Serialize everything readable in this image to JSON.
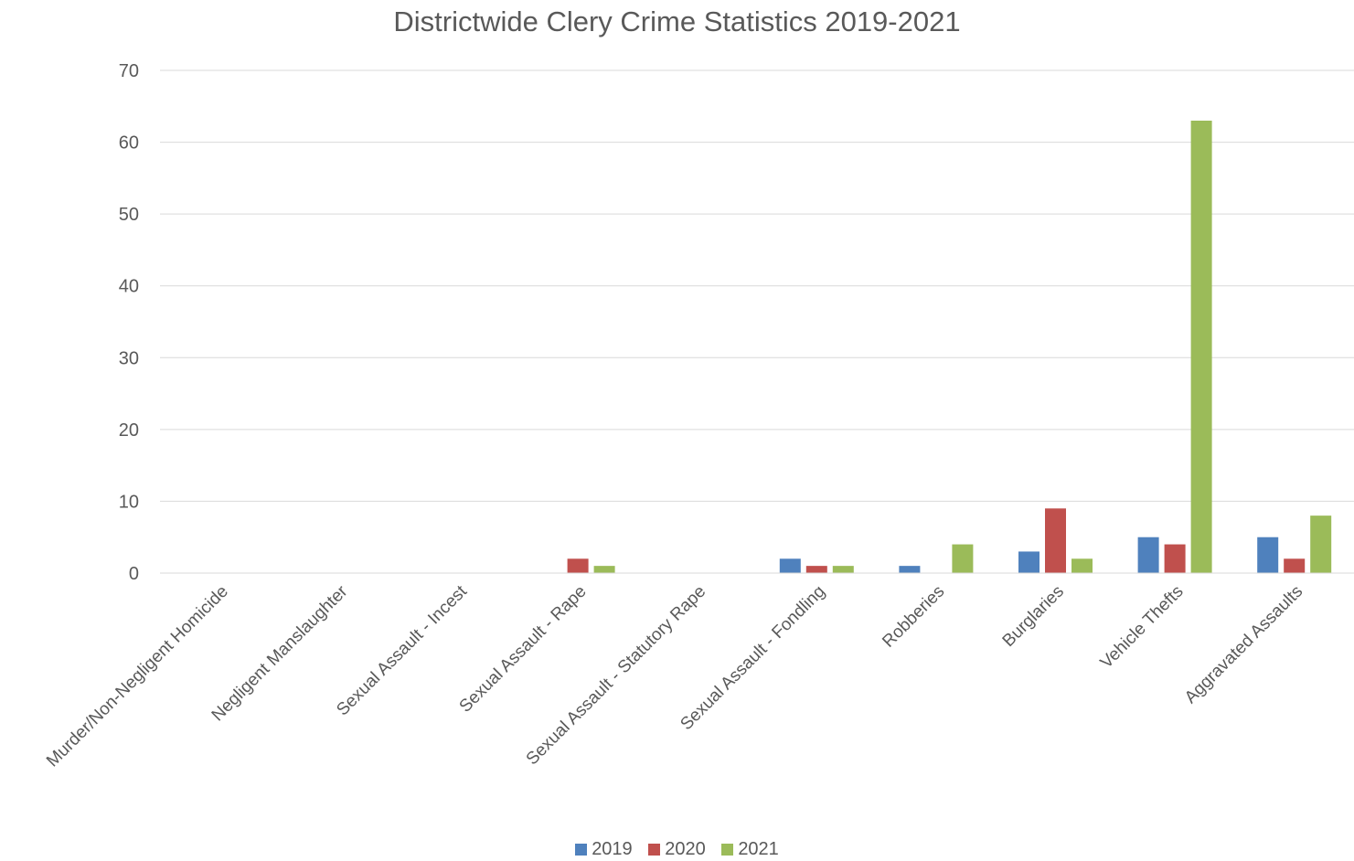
{
  "chart_data": {
    "type": "bar",
    "title": "Districtwide Clery Crime Statistics 2019-2021",
    "xlabel": "",
    "ylabel": "",
    "ylim": [
      0,
      70
    ],
    "yticks": [
      "0",
      "10",
      "20",
      "30",
      "40",
      "50",
      "60",
      "70"
    ],
    "grid": true,
    "legend_position": "bottom",
    "categories": [
      "Murder/Non-Negligent Homicide",
      "Negligent Manslaughter",
      "Sexual Assault - Incest",
      "Sexual Assault - Rape",
      "Sexual Assault - Statutory Rape",
      "Sexual Assault - Fondling",
      "Robberies",
      "Burglaries",
      "Vehicle Thefts",
      "Aggravated Assaults"
    ],
    "series": [
      {
        "name": "2019",
        "color": "#4f81bd",
        "values": [
          0,
          0,
          0,
          0,
          0,
          2,
          1,
          3,
          5,
          5
        ]
      },
      {
        "name": "2020",
        "color": "#c0504d",
        "values": [
          0,
          0,
          0,
          2,
          0,
          1,
          0,
          9,
          4,
          2
        ]
      },
      {
        "name": "2021",
        "color": "#9bbb59",
        "values": [
          0,
          0,
          0,
          1,
          0,
          1,
          4,
          2,
          63,
          8
        ]
      }
    ]
  }
}
